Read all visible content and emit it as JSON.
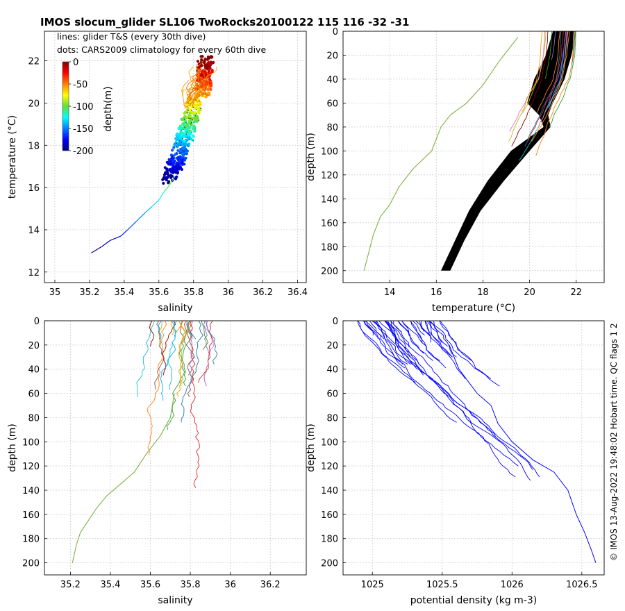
{
  "title": "IMOS slocum_glider SL106 TwoRocks20100122 115  116  -32  -31",
  "side_note": "© IMOS 13-Aug-2022 19:48:02 Hobart time. QC flags 1  2",
  "legend": {
    "line1": "lines: glider T&S (every 30th dive)",
    "line2": "dots: CARS2009 climatology for every 60th dive"
  },
  "colorbar": {
    "label": "depth(m)",
    "ticks": [
      "0",
      "-50",
      "-100",
      "-150",
      "-200"
    ],
    "range": [
      -200,
      0
    ]
  },
  "chart_data": [
    {
      "type": "line",
      "name": "ts-diagram",
      "xlabel": "salinity",
      "ylabel": "temperature (°C)",
      "xlim": [
        34.94,
        36.45
      ],
      "ylim": [
        11.5,
        23.4
      ],
      "xticks": [
        "35",
        "35.2",
        "35.4",
        "35.6",
        "35.8",
        "36",
        "36.2",
        "36.4"
      ],
      "yticks": [
        "12",
        "14",
        "16",
        "18",
        "20",
        "22"
      ],
      "grid": true,
      "deep_profile": [
        [
          35.21,
          12.9
        ],
        [
          35.27,
          13.2
        ],
        [
          35.32,
          13.5
        ],
        [
          35.38,
          13.7
        ],
        [
          35.42,
          14.0
        ],
        [
          35.47,
          14.4
        ],
        [
          35.52,
          14.8
        ],
        [
          35.56,
          15.1
        ],
        [
          35.6,
          15.4
        ],
        [
          35.63,
          15.8
        ],
        [
          35.66,
          16.1
        ],
        [
          35.69,
          16.5
        ]
      ]
    },
    {
      "type": "line",
      "name": "temperature-profiles",
      "xlabel": "temperature (°C)",
      "ylabel": "depth (m)",
      "xlim": [
        12.0,
        23.2
      ],
      "ylim": [
        0,
        210
      ],
      "xticks": [
        "14",
        "16",
        "18",
        "20",
        "22"
      ],
      "yticks": [
        "0",
        "20",
        "40",
        "60",
        "80",
        "100",
        "120",
        "140",
        "160",
        "180",
        "200"
      ],
      "grid": true,
      "climatology_band": {
        "left": [
          [
            21.0,
            0
          ],
          [
            20.7,
            20
          ],
          [
            20.2,
            40
          ],
          [
            19.9,
            60
          ],
          [
            20.4,
            70
          ],
          [
            20.6,
            80
          ],
          [
            19.2,
            100
          ],
          [
            18.2,
            125
          ],
          [
            17.4,
            150
          ],
          [
            16.8,
            175
          ],
          [
            16.2,
            200
          ]
        ],
        "right": [
          [
            22.0,
            0
          ],
          [
            21.8,
            20
          ],
          [
            21.5,
            40
          ],
          [
            21.0,
            60
          ],
          [
            20.8,
            70
          ],
          [
            20.9,
            80
          ],
          [
            20.0,
            100
          ],
          [
            18.9,
            125
          ],
          [
            17.9,
            150
          ],
          [
            17.2,
            175
          ],
          [
            16.6,
            200
          ]
        ]
      },
      "deep_profile": [
        [
          19.5,
          5
        ],
        [
          18.7,
          25
        ],
        [
          18.0,
          45
        ],
        [
          17.3,
          60
        ],
        [
          16.6,
          70
        ],
        [
          16.2,
          80
        ],
        [
          15.8,
          100
        ],
        [
          15.0,
          115
        ],
        [
          14.4,
          130
        ],
        [
          14.0,
          145
        ],
        [
          13.6,
          155
        ],
        [
          13.3,
          170
        ],
        [
          13.1,
          185
        ],
        [
          12.9,
          200
        ]
      ]
    },
    {
      "type": "line",
      "name": "salinity-profiles",
      "xlabel": "salinity",
      "ylabel": "depth (m)",
      "xlim": [
        35.07,
        36.38
      ],
      "ylim": [
        0,
        210
      ],
      "xticks": [
        "35.2",
        "35.4",
        "35.6",
        "35.8",
        "36",
        "36.2"
      ],
      "yticks": [
        "0",
        "20",
        "40",
        "60",
        "80",
        "100",
        "120",
        "140",
        "160",
        "180",
        "200"
      ],
      "grid": true,
      "deep_profile": [
        [
          35.72,
          60
        ],
        [
          35.7,
          80
        ],
        [
          35.65,
          95
        ],
        [
          35.58,
          110
        ],
        [
          35.52,
          125
        ],
        [
          35.45,
          135
        ],
        [
          35.38,
          145
        ],
        [
          35.33,
          155
        ],
        [
          35.29,
          165
        ],
        [
          35.25,
          175
        ],
        [
          35.23,
          185
        ],
        [
          35.21,
          200
        ]
      ]
    },
    {
      "type": "line",
      "name": "density-profiles",
      "xlabel": "potential density (kg m-3)",
      "ylabel": "depth (m)",
      "xlim": [
        1024.79,
        1026.66
      ],
      "ylim": [
        0,
        210
      ],
      "xticks": [
        "1025",
        "1025.5",
        "1026",
        "1026.5"
      ],
      "yticks": [
        "0",
        "20",
        "40",
        "60",
        "80",
        "100",
        "120",
        "140",
        "160",
        "180",
        "200"
      ],
      "grid": true,
      "deep_profile": [
        [
          1025.55,
          20
        ],
        [
          1025.62,
          40
        ],
        [
          1025.75,
          60
        ],
        [
          1025.85,
          70
        ],
        [
          1025.9,
          85
        ],
        [
          1026.0,
          100
        ],
        [
          1026.15,
          115
        ],
        [
          1026.3,
          125
        ],
        [
          1026.4,
          140
        ],
        [
          1026.46,
          160
        ],
        [
          1026.52,
          175
        ],
        [
          1026.57,
          190
        ],
        [
          1026.6,
          200
        ]
      ]
    }
  ]
}
